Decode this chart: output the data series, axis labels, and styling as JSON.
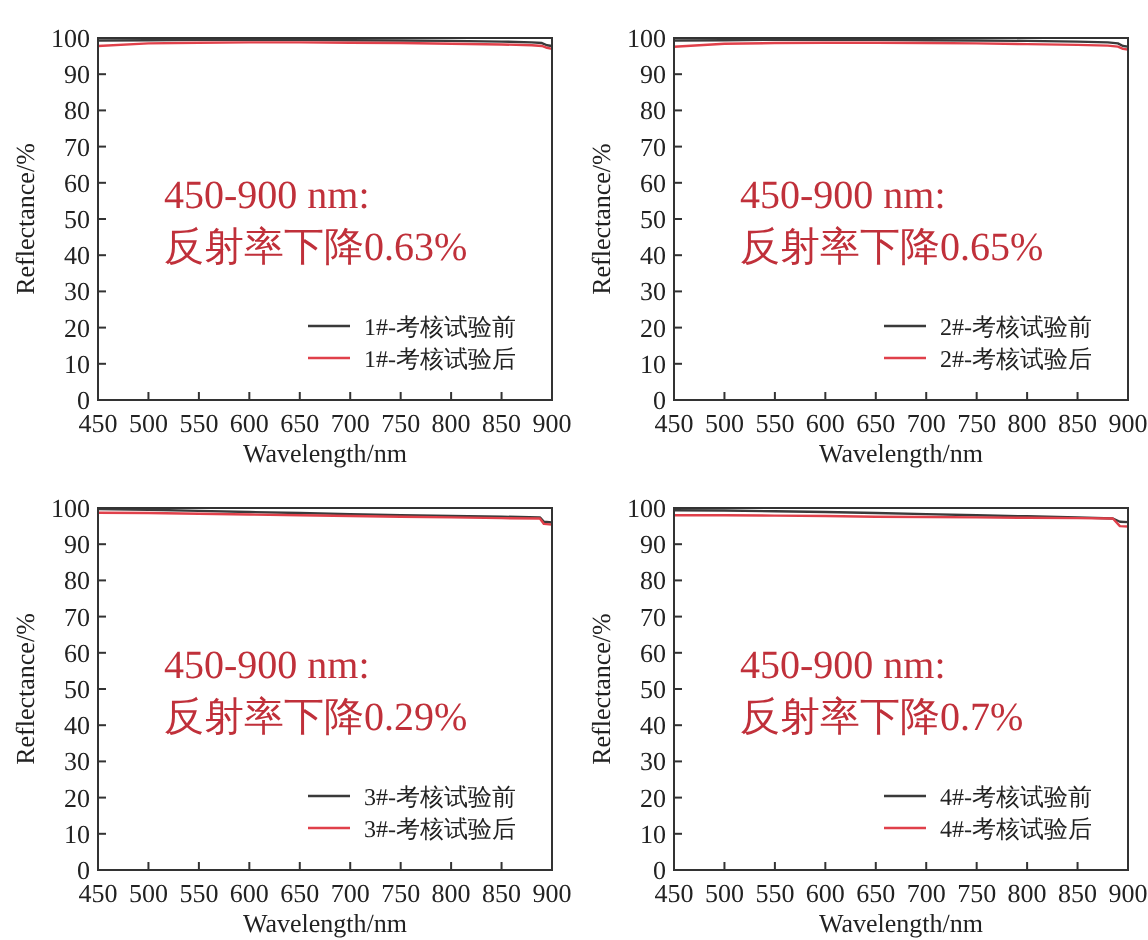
{
  "chart_data": [
    {
      "type": "line",
      "xlabel": "Wavelength/nm",
      "ylabel": "Reflectance/%",
      "xlim": [
        450,
        900
      ],
      "ylim": [
        0,
        100
      ],
      "xticks": [
        450,
        500,
        550,
        600,
        650,
        700,
        750,
        800,
        850,
        900
      ],
      "yticks": [
        0,
        10,
        20,
        30,
        40,
        50,
        60,
        70,
        80,
        90,
        100
      ],
      "legend": "bottom right",
      "annotations": [
        "450-900 nm:",
        "反射率下降0.63%"
      ],
      "series": [
        {
          "name": "1#-考核试验前",
          "color": "#3a3a3a",
          "x": [
            450,
            500,
            550,
            600,
            650,
            700,
            750,
            800,
            850,
            880,
            890,
            895,
            900
          ],
          "values": [
            99.3,
            99.4,
            99.5,
            99.5,
            99.5,
            99.4,
            99.3,
            99.2,
            99.0,
            98.8,
            98.6,
            98.0,
            97.8
          ]
        },
        {
          "name": "1#-考核试验后",
          "color": "#e0404a",
          "x": [
            450,
            500,
            550,
            600,
            650,
            700,
            750,
            800,
            850,
            880,
            890,
            895,
            900
          ],
          "values": [
            97.8,
            98.5,
            98.7,
            98.8,
            98.8,
            98.7,
            98.6,
            98.4,
            98.2,
            98.0,
            97.8,
            97.3,
            97.0
          ]
        }
      ]
    },
    {
      "type": "line",
      "xlabel": "Wavelength/nm",
      "ylabel": "Reflectance/%",
      "xlim": [
        450,
        900
      ],
      "ylim": [
        0,
        100
      ],
      "xticks": [
        450,
        500,
        550,
        600,
        650,
        700,
        750,
        800,
        850,
        900
      ],
      "yticks": [
        0,
        10,
        20,
        30,
        40,
        50,
        60,
        70,
        80,
        90,
        100
      ],
      "legend": "bottom right",
      "annotations": [
        "450-900 nm:",
        "反射率下降0.65%"
      ],
      "series": [
        {
          "name": "2#-考核试验前",
          "color": "#3a3a3a",
          "x": [
            450,
            500,
            550,
            600,
            650,
            700,
            750,
            800,
            850,
            880,
            890,
            895,
            900
          ],
          "values": [
            99.3,
            99.4,
            99.5,
            99.5,
            99.5,
            99.4,
            99.3,
            99.2,
            99.0,
            98.8,
            98.5,
            97.8,
            97.6
          ]
        },
        {
          "name": "2#-考核试验后",
          "color": "#e0404a",
          "x": [
            450,
            500,
            550,
            600,
            650,
            700,
            750,
            800,
            850,
            880,
            890,
            895,
            900
          ],
          "values": [
            97.6,
            98.4,
            98.6,
            98.7,
            98.7,
            98.6,
            98.5,
            98.3,
            98.1,
            97.9,
            97.6,
            97.0,
            96.8
          ]
        }
      ]
    },
    {
      "type": "line",
      "xlabel": "Wavelength/nm",
      "ylabel": "Reflectance/%",
      "xlim": [
        450,
        900
      ],
      "ylim": [
        0,
        100
      ],
      "xticks": [
        450,
        500,
        550,
        600,
        650,
        700,
        750,
        800,
        850,
        900
      ],
      "yticks": [
        0,
        10,
        20,
        30,
        40,
        50,
        60,
        70,
        80,
        90,
        100
      ],
      "legend": "bottom right",
      "annotations": [
        "450-900 nm:",
        "反射率下降0.29%"
      ],
      "series": [
        {
          "name": "3#-考核试验前",
          "color": "#3a3a3a",
          "x": [
            450,
            500,
            550,
            600,
            650,
            700,
            750,
            800,
            850,
            888,
            892,
            900
          ],
          "values": [
            99.7,
            99.5,
            99.2,
            98.9,
            98.6,
            98.3,
            98.0,
            97.8,
            97.6,
            97.4,
            96.2,
            96.0
          ]
        },
        {
          "name": "3#-考核试验后",
          "color": "#e0404a",
          "x": [
            450,
            500,
            550,
            600,
            650,
            700,
            750,
            800,
            850,
            888,
            892,
            900
          ],
          "values": [
            98.7,
            98.6,
            98.4,
            98.2,
            98.0,
            97.8,
            97.6,
            97.4,
            97.2,
            97.1,
            95.6,
            95.4
          ]
        }
      ]
    },
    {
      "type": "line",
      "xlabel": "Wavelength/nm",
      "ylabel": "Reflectance/%",
      "xlim": [
        450,
        900
      ],
      "ylim": [
        0,
        100
      ],
      "xticks": [
        450,
        500,
        550,
        600,
        650,
        700,
        750,
        800,
        850,
        900
      ],
      "yticks": [
        0,
        10,
        20,
        30,
        40,
        50,
        60,
        70,
        80,
        90,
        100
      ],
      "legend": "bottom right",
      "annotations": [
        "450-900 nm:",
        "反射率下降0.7%"
      ],
      "series": [
        {
          "name": "4#-考核试验前",
          "color": "#3a3a3a",
          "x": [
            450,
            500,
            550,
            600,
            650,
            700,
            750,
            800,
            850,
            885,
            892,
            900
          ],
          "values": [
            99.4,
            99.3,
            99.1,
            98.9,
            98.6,
            98.3,
            98.0,
            97.7,
            97.4,
            97.1,
            96.2,
            96.1
          ]
        },
        {
          "name": "4#-考核试验后",
          "color": "#e0404a",
          "x": [
            450,
            500,
            550,
            600,
            650,
            700,
            750,
            800,
            850,
            885,
            892,
            900
          ],
          "values": [
            98.0,
            98.0,
            97.9,
            97.8,
            97.6,
            97.5,
            97.4,
            97.3,
            97.2,
            97.1,
            95.0,
            94.9
          ]
        }
      ]
    }
  ]
}
